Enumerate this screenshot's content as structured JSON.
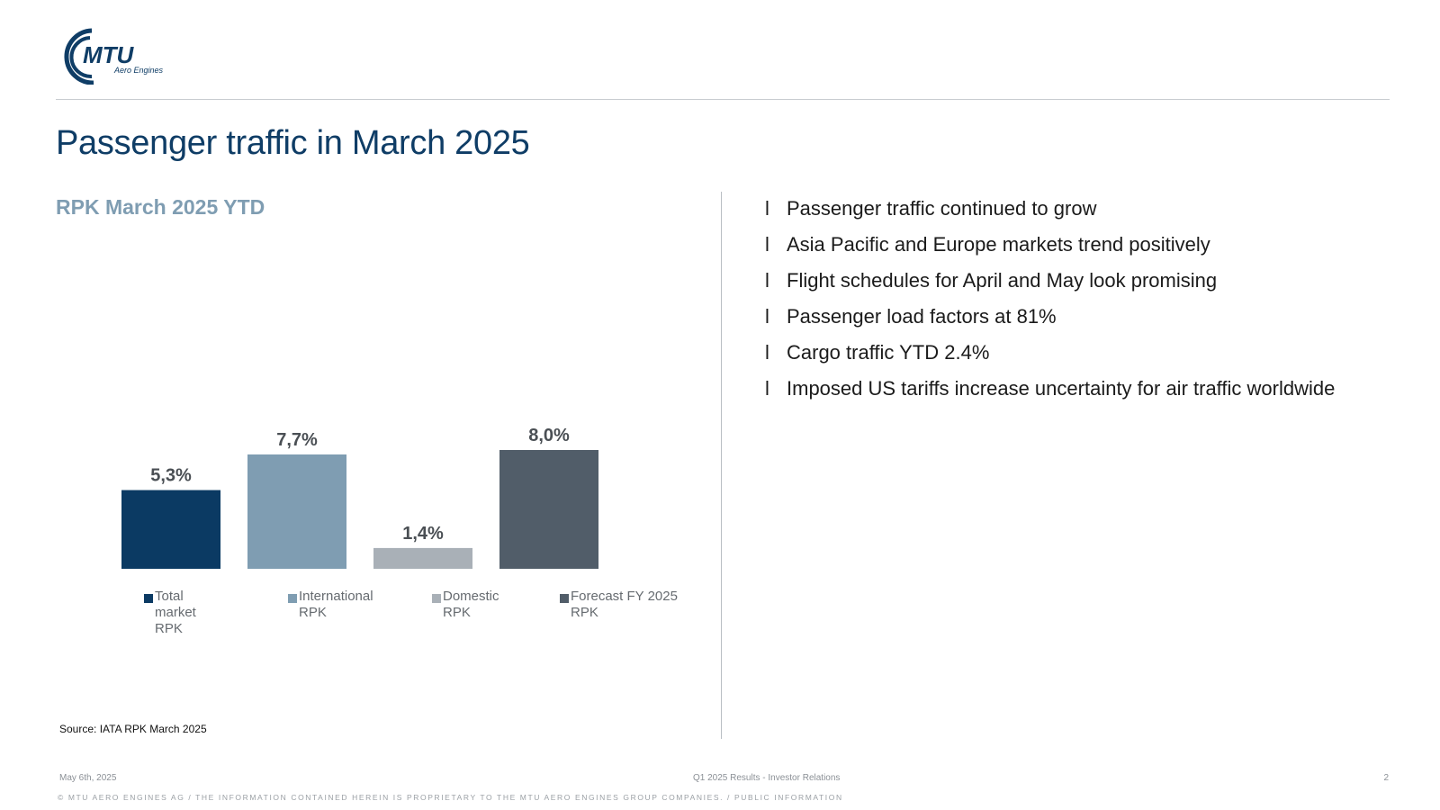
{
  "brand": {
    "logo_text": "MTU",
    "logo_subtext": "Aero Engines",
    "primary_color": "#0f3d66"
  },
  "page": {
    "title": "Passenger traffic in March 2025",
    "subtitle": "RPK March 2025 YTD"
  },
  "chart_data": {
    "type": "bar",
    "categories": [
      "Total market RPK",
      "International RPK",
      "Domestic RPK",
      "Forecast FY 2025 RPK"
    ],
    "values": [
      5.3,
      7.7,
      1.4,
      8.0
    ],
    "value_labels": [
      "5,3%",
      "7,7%",
      "1,4%",
      "8,0%"
    ],
    "colors": [
      "#0b3a63",
      "#7f9db2",
      "#a9b0b7",
      "#515d69"
    ],
    "title": "",
    "xlabel": "",
    "ylabel": "",
    "ylim": [
      0,
      8.0
    ],
    "grid": false,
    "legend_position": "bottom",
    "legend": [
      "Total market RPK",
      "International RPK",
      "Domestic RPK",
      "Forecast FY 2025 RPK"
    ]
  },
  "source": "Source: IATA RPK March 2025",
  "bullets": [
    "Passenger traffic continued to grow",
    "Asia Pacific and Europe markets trend positively",
    "Flight schedules for April and May look promising",
    "Passenger load factors at 81%",
    "Cargo traffic YTD 2.4%",
    "Imposed US tariffs increase uncertainty for air traffic worldwide"
  ],
  "bullet_marker": "l",
  "footer": {
    "date": "May 6th, 2025",
    "center": "Q1 2025 Results - Investor Relations",
    "page_number": "2",
    "legal": "© MTU AERO ENGINES AG  /  THE INFORMATION CONTAINED HEREIN IS PROPRIETARY TO THE MTU AERO ENGINES GROUP COMPANIES.  /  PUBLIC INFORMATION"
  }
}
